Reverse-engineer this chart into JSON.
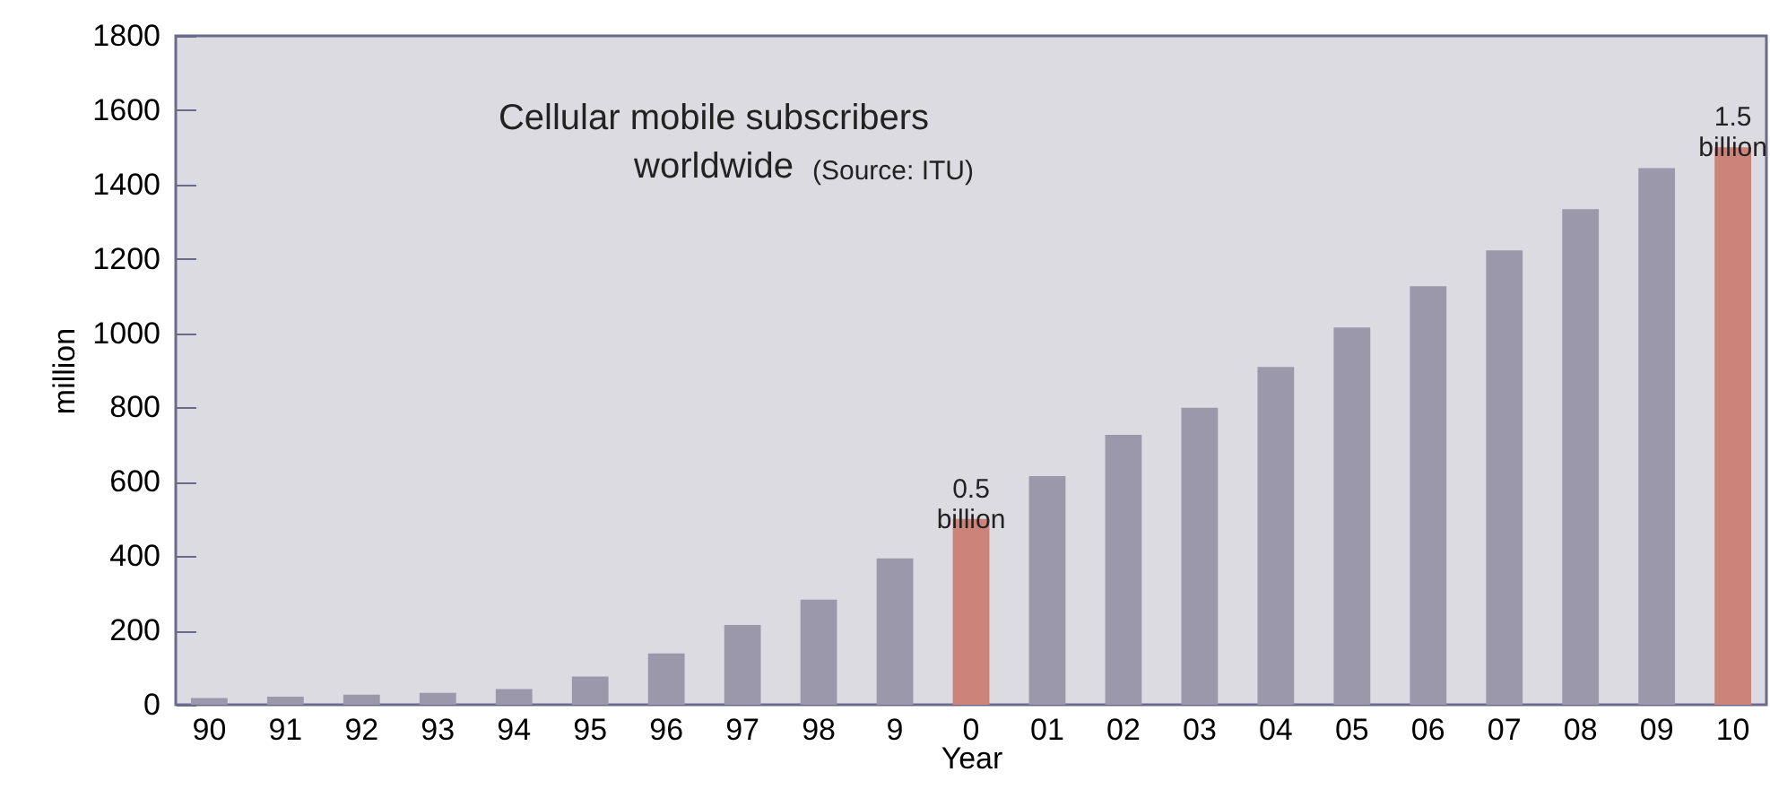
{
  "chart_data": {
    "type": "bar",
    "title": "Cellular mobile subscribers\nworldwide",
    "xlabel": "Year",
    "ylabel": "million",
    "categories": [
      "90",
      "91",
      "92",
      "93",
      "94",
      "95",
      "96",
      "97",
      "98",
      "9",
      "0",
      "01",
      "02",
      "03",
      "04",
      "05",
      "06",
      "07",
      "08",
      "09",
      "10"
    ],
    "values": [
      18,
      22,
      27,
      32,
      42,
      76,
      138,
      215,
      283,
      394,
      500,
      615,
      726,
      799,
      909,
      1015,
      1126,
      1223,
      1334,
      1444,
      1500
    ],
    "colors": [
      "#9b98ab",
      "#9b98ab",
      "#9b98ab",
      "#9b98ab",
      "#9b98ab",
      "#9b98ab",
      "#9b98ab",
      "#9b98ab",
      "#9b98ab",
      "#9b98ab",
      "#cc837a",
      "#9b98ab",
      "#9b98ab",
      "#9b98ab",
      "#9b98ab",
      "#9b98ab",
      "#9b98ab",
      "#9b98ab",
      "#9b98ab",
      "#9b98ab",
      "#cc837a"
    ],
    "ylim": [
      0,
      1800
    ],
    "yticks": [
      0,
      200,
      400,
      600,
      800,
      1000,
      1200,
      1400,
      1600,
      1800
    ],
    "annotations": [
      "(Source: ITU)",
      {
        "text": "0.5\nbillion",
        "x": "0",
        "y": 500
      },
      {
        "text": "1.5\nbillion",
        "x": "10",
        "y": 1500
      }
    ]
  }
}
